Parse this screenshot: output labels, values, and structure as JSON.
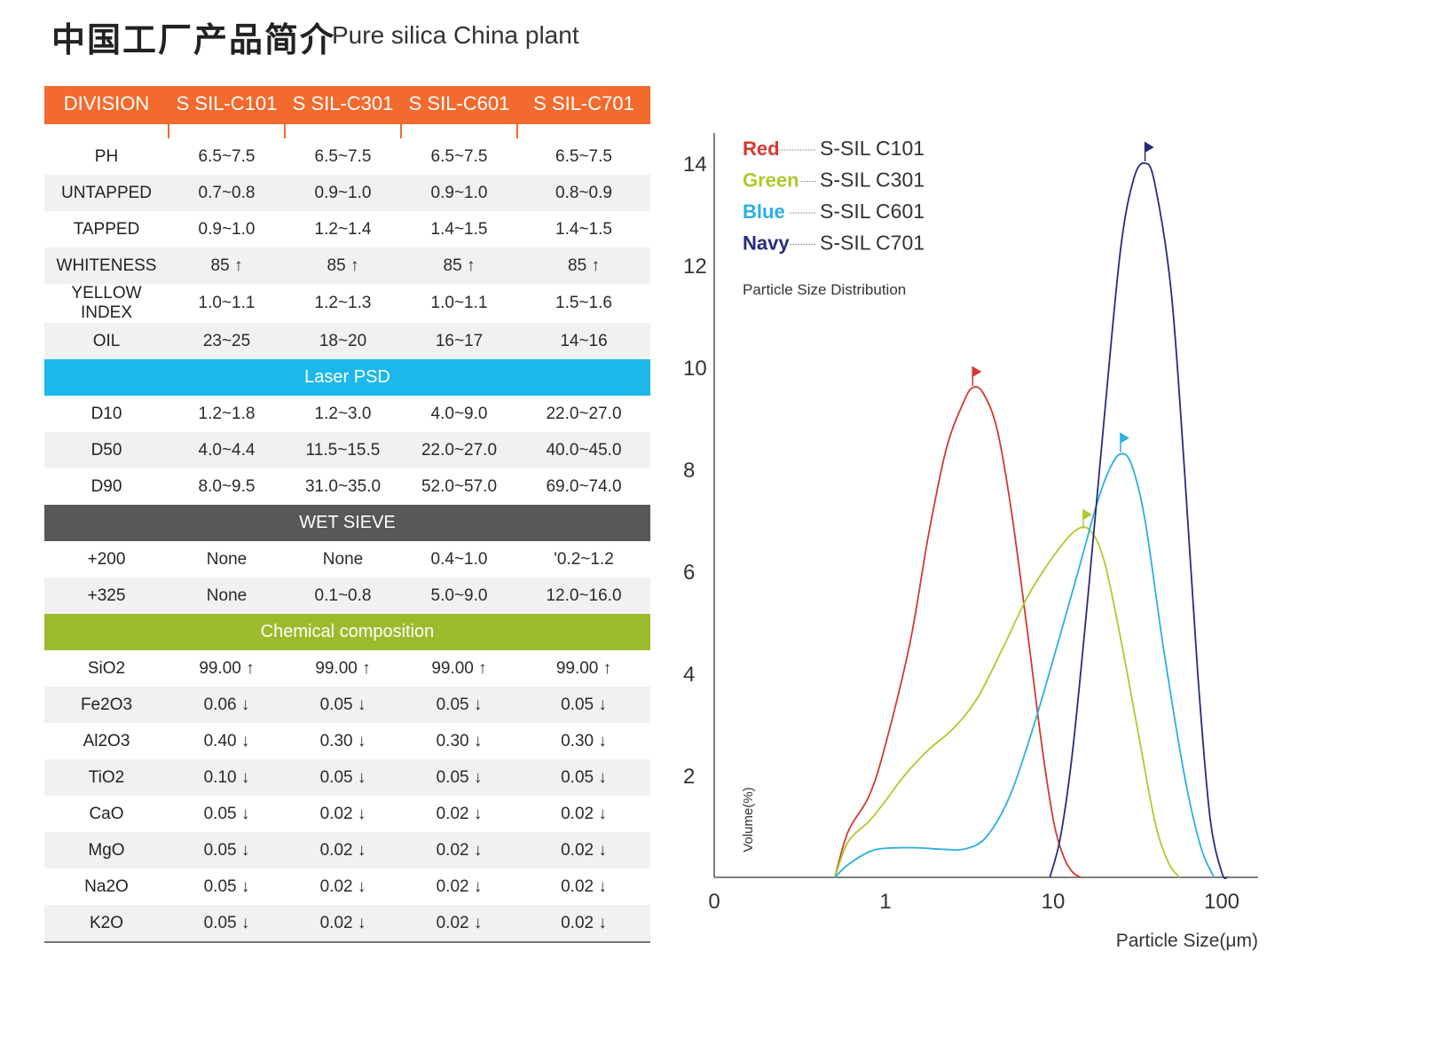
{
  "header": {
    "title_cn": "中国工厂产品简介",
    "title_en": "Pure silica China plant"
  },
  "table": {
    "columns": [
      "DIVISION",
      "S SIL-C101",
      "S SIL-C301",
      "S SIL-C601",
      "S SIL-C701"
    ],
    "groups": [
      {
        "section": "",
        "rows": [
          [
            "PH",
            "6.5~7.5",
            "6.5~7.5",
            "6.5~7.5",
            "6.5~7.5"
          ],
          [
            "UNTAPPED",
            "0.7~0.8",
            "0.9~1.0",
            "0.9~1.0",
            "0.8~0.9"
          ],
          [
            "TAPPED",
            "0.9~1.0",
            "1.2~1.4",
            "1.4~1.5",
            "1.4~1.5"
          ],
          [
            "WHITENESS",
            "85 ↑",
            "85 ↑",
            "85 ↑",
            "85 ↑"
          ],
          [
            "YELLOW INDEX",
            "1.0~1.1",
            "1.2~1.3",
            "1.0~1.1",
            "1.5~1.6"
          ],
          [
            "OIL",
            "23~25",
            "18~20",
            "16~17",
            "14~16"
          ]
        ]
      },
      {
        "section": "Laser PSD",
        "rows": [
          [
            "D10",
            "1.2~1.8",
            "1.2~3.0",
            "4.0~9.0",
            "22.0~27.0"
          ],
          [
            "D50",
            "4.0~4.4",
            "11.5~15.5",
            "22.0~27.0",
            "40.0~45.0"
          ],
          [
            "D90",
            "8.0~9.5",
            "31.0~35.0",
            "52.0~57.0",
            "69.0~74.0"
          ]
        ]
      },
      {
        "section": "WET SIEVE",
        "rows": [
          [
            "+200",
            "None",
            "None",
            "0.4~1.0",
            "'0.2~1.2"
          ],
          [
            "+325",
            "None",
            "0.1~0.8",
            "5.0~9.0",
            "12.0~16.0"
          ]
        ]
      },
      {
        "section": "Chemical composition",
        "rows": [
          [
            "SiO2",
            "99.00 ↑",
            "99.00 ↑",
            "99.00 ↑",
            "99.00 ↑"
          ],
          [
            "Fe2O3",
            "0.06 ↓",
            "0.05 ↓",
            "0.05 ↓",
            "0.05 ↓"
          ],
          [
            "Al2O3",
            "0.40 ↓",
            "0.30 ↓",
            "0.30 ↓",
            "0.30 ↓"
          ],
          [
            "TiO2",
            "0.10 ↓",
            "0.05 ↓",
            "0.05 ↓",
            "0.05 ↓"
          ],
          [
            "CaO",
            "0.05 ↓",
            "0.02 ↓",
            "0.02 ↓",
            "0.02 ↓"
          ],
          [
            "MgO",
            "0.05 ↓",
            "0.02 ↓",
            "0.02 ↓",
            "0.02 ↓"
          ],
          [
            "Na2O",
            "0.05 ↓",
            "0.02 ↓",
            "0.02 ↓",
            "0.02 ↓"
          ],
          [
            "K2O",
            "0.05 ↓",
            "0.02 ↓",
            "0.02 ↓",
            "0.02 ↓"
          ]
        ]
      }
    ]
  },
  "chart_data": {
    "type": "line",
    "subtitle": "Particle Size Distribution",
    "xlabel": "Particle Size(μm)",
    "ylabel": "Volume(%)",
    "x_scale": "log",
    "x_ticks": [
      "0",
      "1",
      "10",
      "100"
    ],
    "y_ticks": [
      "2",
      "4",
      "6",
      "8",
      "10",
      "12",
      "14"
    ],
    "ylim": [
      0,
      14.5
    ],
    "legend_position": "top-left",
    "series": [
      {
        "name": "S-SIL C101",
        "color_word": "Red",
        "color": "#d23a2e",
        "points": [
          [
            0.5,
            0
          ],
          [
            0.6,
            0.9
          ],
          [
            0.8,
            1.6
          ],
          [
            1.0,
            2.6
          ],
          [
            1.4,
            4.6
          ],
          [
            1.8,
            6.7
          ],
          [
            2.3,
            8.4
          ],
          [
            2.9,
            9.3
          ],
          [
            3.3,
            9.6
          ],
          [
            3.8,
            9.5
          ],
          [
            4.6,
            8.8
          ],
          [
            5.6,
            7.2
          ],
          [
            7.0,
            4.8
          ],
          [
            8.5,
            2.6
          ],
          [
            10.0,
            1.1
          ],
          [
            11.5,
            0.4
          ],
          [
            13.0,
            0.1
          ],
          [
            14.5,
            0
          ]
        ]
      },
      {
        "name": "S-SIL C301",
        "color_word": "Green",
        "color": "#b2c82c",
        "points": [
          [
            0.5,
            0
          ],
          [
            0.6,
            0.7
          ],
          [
            0.8,
            1.1
          ],
          [
            1.0,
            1.5
          ],
          [
            1.3,
            2.0
          ],
          [
            1.8,
            2.5
          ],
          [
            2.5,
            2.9
          ],
          [
            3.5,
            3.5
          ],
          [
            5.0,
            4.5
          ],
          [
            7.0,
            5.5
          ],
          [
            10.0,
            6.3
          ],
          [
            13.5,
            6.8
          ],
          [
            16.5,
            6.8
          ],
          [
            20.0,
            6.2
          ],
          [
            25.0,
            4.7
          ],
          [
            32.0,
            2.8
          ],
          [
            40.0,
            1.1
          ],
          [
            48.0,
            0.3
          ],
          [
            56.0,
            0
          ]
        ]
      },
      {
        "name": "S-SIL C601",
        "color_word": "Blue",
        "color": "#2ab0e0",
        "points": [
          [
            0.5,
            0
          ],
          [
            0.6,
            0.25
          ],
          [
            0.8,
            0.5
          ],
          [
            1.0,
            0.57
          ],
          [
            1.5,
            0.58
          ],
          [
            2.2,
            0.55
          ],
          [
            3.0,
            0.56
          ],
          [
            4.0,
            0.8
          ],
          [
            5.5,
            1.6
          ],
          [
            7.5,
            2.9
          ],
          [
            10.0,
            4.3
          ],
          [
            14.0,
            6.0
          ],
          [
            18.0,
            7.3
          ],
          [
            21.5,
            8.0
          ],
          [
            25.0,
            8.3
          ],
          [
            29.0,
            8.1
          ],
          [
            35.0,
            7.0
          ],
          [
            45.0,
            4.5
          ],
          [
            60.0,
            2.0
          ],
          [
            75.0,
            0.6
          ],
          [
            90.0,
            0
          ]
        ]
      },
      {
        "name": "S-SIL C701",
        "color_word": "Navy",
        "color": "#262c7c",
        "points": [
          [
            9.5,
            0
          ],
          [
            11.0,
            0.8
          ],
          [
            13.0,
            2.5
          ],
          [
            16.0,
            5.5
          ],
          [
            20.0,
            9.0
          ],
          [
            25.0,
            12.3
          ],
          [
            30.0,
            13.7
          ],
          [
            35.0,
            14.0
          ],
          [
            40.0,
            13.6
          ],
          [
            50.0,
            11.5
          ],
          [
            60.0,
            8.0
          ],
          [
            72.0,
            4.0
          ],
          [
            85.0,
            1.2
          ],
          [
            100.0,
            0.1
          ],
          [
            108.0,
            0
          ]
        ]
      }
    ],
    "peak_flags": [
      {
        "series": "S-SIL C101",
        "x": 3.3,
        "y": 9.6
      },
      {
        "series": "S-SIL C301",
        "x": 15.0,
        "y": 6.8
      },
      {
        "series": "S-SIL C601",
        "x": 25.0,
        "y": 8.3
      },
      {
        "series": "S-SIL C701",
        "x": 35.0,
        "y": 14.0
      }
    ]
  }
}
